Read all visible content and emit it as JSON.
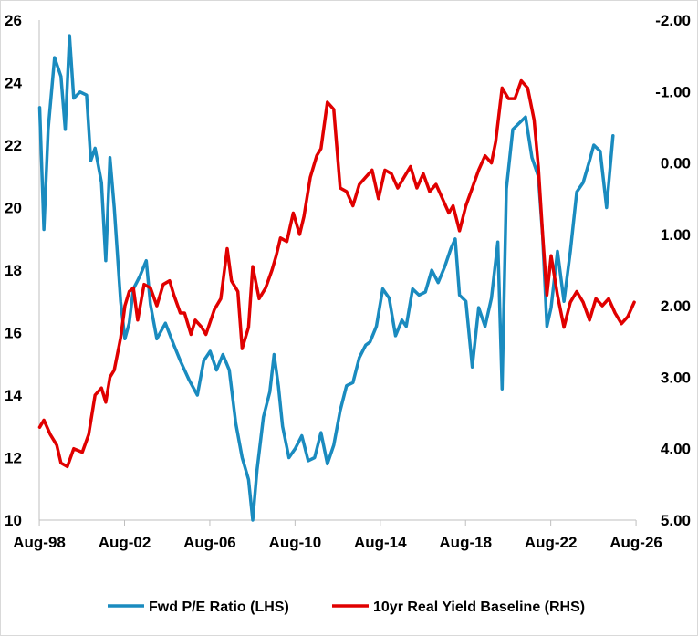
{
  "chart_data": {
    "type": "line",
    "title": "",
    "x_ticks": [
      "Aug-98",
      "Aug-02",
      "Aug-06",
      "Aug-10",
      "Aug-14",
      "Aug-18",
      "Aug-22",
      "Aug-26"
    ],
    "x_range": [
      "Aug-98",
      "Aug-26"
    ],
    "y_left": {
      "ticks": [
        "10",
        "12",
        "14",
        "16",
        "18",
        "20",
        "22",
        "24",
        "26"
      ],
      "range": [
        10,
        26
      ]
    },
    "y_right": {
      "ticks": [
        "-2.00",
        "-1.00",
        "0.00",
        "1.00",
        "2.00",
        "3.00",
        "4.00",
        "5.00"
      ],
      "range": [
        5.0,
        -2.0
      ],
      "inverted": true
    },
    "grid": false,
    "legend_position": "bottom",
    "series": [
      {
        "name": "Fwd P/E Ratio (LHS)",
        "axis": "left",
        "color": "#1a8bbf",
        "points": [
          [
            1998.6,
            23.2
          ],
          [
            1998.8,
            19.3
          ],
          [
            1999.0,
            22.5
          ],
          [
            1999.3,
            24.8
          ],
          [
            1999.6,
            24.2
          ],
          [
            1999.8,
            22.5
          ],
          [
            2000.0,
            25.5
          ],
          [
            2000.2,
            23.5
          ],
          [
            2000.5,
            23.7
          ],
          [
            2000.8,
            23.6
          ],
          [
            2001.0,
            21.5
          ],
          [
            2001.2,
            21.9
          ],
          [
            2001.5,
            20.8
          ],
          [
            2001.7,
            18.3
          ],
          [
            2001.9,
            21.6
          ],
          [
            2002.1,
            20.0
          ],
          [
            2002.4,
            17.0
          ],
          [
            2002.6,
            15.8
          ],
          [
            2002.8,
            16.3
          ],
          [
            2003.0,
            17.4
          ],
          [
            2003.3,
            17.8
          ],
          [
            2003.6,
            18.3
          ],
          [
            2003.8,
            16.9
          ],
          [
            2004.1,
            15.8
          ],
          [
            2004.5,
            16.3
          ],
          [
            2004.9,
            15.6
          ],
          [
            2005.2,
            15.1
          ],
          [
            2005.6,
            14.5
          ],
          [
            2006.0,
            14.0
          ],
          [
            2006.3,
            15.1
          ],
          [
            2006.6,
            15.4
          ],
          [
            2006.9,
            14.8
          ],
          [
            2007.2,
            15.3
          ],
          [
            2007.5,
            14.8
          ],
          [
            2007.8,
            13.1
          ],
          [
            2008.1,
            12.0
          ],
          [
            2008.4,
            11.3
          ],
          [
            2008.6,
            10.0
          ],
          [
            2008.8,
            11.6
          ],
          [
            2009.1,
            13.3
          ],
          [
            2009.4,
            14.1
          ],
          [
            2009.6,
            15.3
          ],
          [
            2009.8,
            14.3
          ],
          [
            2010.0,
            13.0
          ],
          [
            2010.3,
            12.0
          ],
          [
            2010.6,
            12.3
          ],
          [
            2010.9,
            12.7
          ],
          [
            2011.2,
            11.9
          ],
          [
            2011.5,
            12.0
          ],
          [
            2011.8,
            12.8
          ],
          [
            2012.1,
            11.8
          ],
          [
            2012.4,
            12.4
          ],
          [
            2012.7,
            13.5
          ],
          [
            2013.0,
            14.3
          ],
          [
            2013.3,
            14.4
          ],
          [
            2013.6,
            15.2
          ],
          [
            2013.9,
            15.6
          ],
          [
            2014.1,
            15.7
          ],
          [
            2014.4,
            16.2
          ],
          [
            2014.7,
            17.4
          ],
          [
            2015.0,
            17.1
          ],
          [
            2015.3,
            15.9
          ],
          [
            2015.6,
            16.4
          ],
          [
            2015.8,
            16.2
          ],
          [
            2016.1,
            17.4
          ],
          [
            2016.4,
            17.2
          ],
          [
            2016.7,
            17.3
          ],
          [
            2017.0,
            18.0
          ],
          [
            2017.3,
            17.6
          ],
          [
            2017.6,
            18.1
          ],
          [
            2017.9,
            18.7
          ],
          [
            2018.1,
            19.0
          ],
          [
            2018.3,
            17.2
          ],
          [
            2018.6,
            17.0
          ],
          [
            2018.9,
            14.9
          ],
          [
            2019.2,
            16.8
          ],
          [
            2019.5,
            16.2
          ],
          [
            2019.8,
            17.1
          ],
          [
            2020.1,
            18.9
          ],
          [
            2020.3,
            14.2
          ],
          [
            2020.5,
            20.6
          ],
          [
            2020.8,
            22.5
          ],
          [
            2021.1,
            22.7
          ],
          [
            2021.4,
            22.9
          ],
          [
            2021.7,
            21.6
          ],
          [
            2022.0,
            21.0
          ],
          [
            2022.2,
            19.1
          ],
          [
            2022.4,
            16.2
          ],
          [
            2022.6,
            16.8
          ],
          [
            2022.9,
            18.6
          ],
          [
            2023.2,
            17.0
          ],
          [
            2023.5,
            18.6
          ],
          [
            2023.8,
            20.5
          ],
          [
            2024.1,
            20.8
          ],
          [
            2024.4,
            21.5
          ],
          [
            2024.6,
            22.0
          ],
          [
            2024.9,
            21.8
          ],
          [
            2025.2,
            20.0
          ],
          [
            2025.5,
            22.3
          ]
        ]
      },
      {
        "name": "10yr Real Yield Baseline (RHS)",
        "axis": "right",
        "color": "#e00000",
        "points": [
          [
            1998.6,
            3.7
          ],
          [
            1998.8,
            3.6
          ],
          [
            1999.1,
            3.8
          ],
          [
            1999.4,
            3.95
          ],
          [
            1999.6,
            4.2
          ],
          [
            1999.9,
            4.25
          ],
          [
            2000.2,
            4.0
          ],
          [
            2000.6,
            4.05
          ],
          [
            2000.9,
            3.8
          ],
          [
            2001.2,
            3.25
          ],
          [
            2001.5,
            3.15
          ],
          [
            2001.7,
            3.35
          ],
          [
            2001.9,
            3.0
          ],
          [
            2002.1,
            2.9
          ],
          [
            2002.4,
            2.45
          ],
          [
            2002.6,
            2.0
          ],
          [
            2002.8,
            1.8
          ],
          [
            2003.0,
            1.75
          ],
          [
            2003.2,
            2.2
          ],
          [
            2003.5,
            1.7
          ],
          [
            2003.8,
            1.75
          ],
          [
            2004.1,
            2.0
          ],
          [
            2004.4,
            1.7
          ],
          [
            2004.7,
            1.65
          ],
          [
            2004.9,
            1.85
          ],
          [
            2005.2,
            2.1
          ],
          [
            2005.4,
            2.1
          ],
          [
            2005.7,
            2.4
          ],
          [
            2005.9,
            2.2
          ],
          [
            2006.2,
            2.3
          ],
          [
            2006.4,
            2.4
          ],
          [
            2006.8,
            2.05
          ],
          [
            2007.1,
            1.9
          ],
          [
            2007.4,
            1.2
          ],
          [
            2007.6,
            1.65
          ],
          [
            2007.9,
            1.8
          ],
          [
            2008.1,
            2.6
          ],
          [
            2008.4,
            2.3
          ],
          [
            2008.6,
            1.45
          ],
          [
            2008.9,
            1.9
          ],
          [
            2009.2,
            1.75
          ],
          [
            2009.5,
            1.5
          ],
          [
            2009.7,
            1.3
          ],
          [
            2009.9,
            1.05
          ],
          [
            2010.2,
            1.1
          ],
          [
            2010.5,
            0.7
          ],
          [
            2010.8,
            1.0
          ],
          [
            2011.0,
            0.75
          ],
          [
            2011.3,
            0.2
          ],
          [
            2011.6,
            -0.1
          ],
          [
            2011.8,
            -0.2
          ],
          [
            2012.1,
            -0.85
          ],
          [
            2012.4,
            -0.75
          ],
          [
            2012.7,
            0.35
          ],
          [
            2013.0,
            0.4
          ],
          [
            2013.3,
            0.6
          ],
          [
            2013.6,
            0.3
          ],
          [
            2013.9,
            0.2
          ],
          [
            2014.2,
            0.1
          ],
          [
            2014.5,
            0.5
          ],
          [
            2014.8,
            0.1
          ],
          [
            2015.1,
            0.15
          ],
          [
            2015.4,
            0.35
          ],
          [
            2015.7,
            0.2
          ],
          [
            2016.0,
            0.05
          ],
          [
            2016.3,
            0.35
          ],
          [
            2016.6,
            0.15
          ],
          [
            2016.9,
            0.4
          ],
          [
            2017.2,
            0.3
          ],
          [
            2017.5,
            0.5
          ],
          [
            2017.8,
            0.7
          ],
          [
            2018.0,
            0.6
          ],
          [
            2018.3,
            0.95
          ],
          [
            2018.6,
            0.6
          ],
          [
            2018.9,
            0.35
          ],
          [
            2019.2,
            0.1
          ],
          [
            2019.5,
            -0.1
          ],
          [
            2019.8,
            0.0
          ],
          [
            2020.0,
            -0.3
          ],
          [
            2020.3,
            -1.05
          ],
          [
            2020.6,
            -0.9
          ],
          [
            2020.9,
            -0.9
          ],
          [
            2021.2,
            -1.15
          ],
          [
            2021.5,
            -1.05
          ],
          [
            2021.8,
            -0.6
          ],
          [
            2022.0,
            0.05
          ],
          [
            2022.2,
            1.0
          ],
          [
            2022.4,
            1.85
          ],
          [
            2022.6,
            1.3
          ],
          [
            2022.9,
            1.85
          ],
          [
            2023.2,
            2.3
          ],
          [
            2023.5,
            1.95
          ],
          [
            2023.8,
            1.8
          ],
          [
            2024.1,
            1.95
          ],
          [
            2024.4,
            2.2
          ],
          [
            2024.7,
            1.9
          ],
          [
            2025.0,
            2.0
          ],
          [
            2025.3,
            1.9
          ],
          [
            2025.6,
            2.1
          ],
          [
            2025.9,
            2.25
          ],
          [
            2026.2,
            2.15
          ],
          [
            2026.5,
            1.95
          ]
        ]
      }
    ]
  }
}
